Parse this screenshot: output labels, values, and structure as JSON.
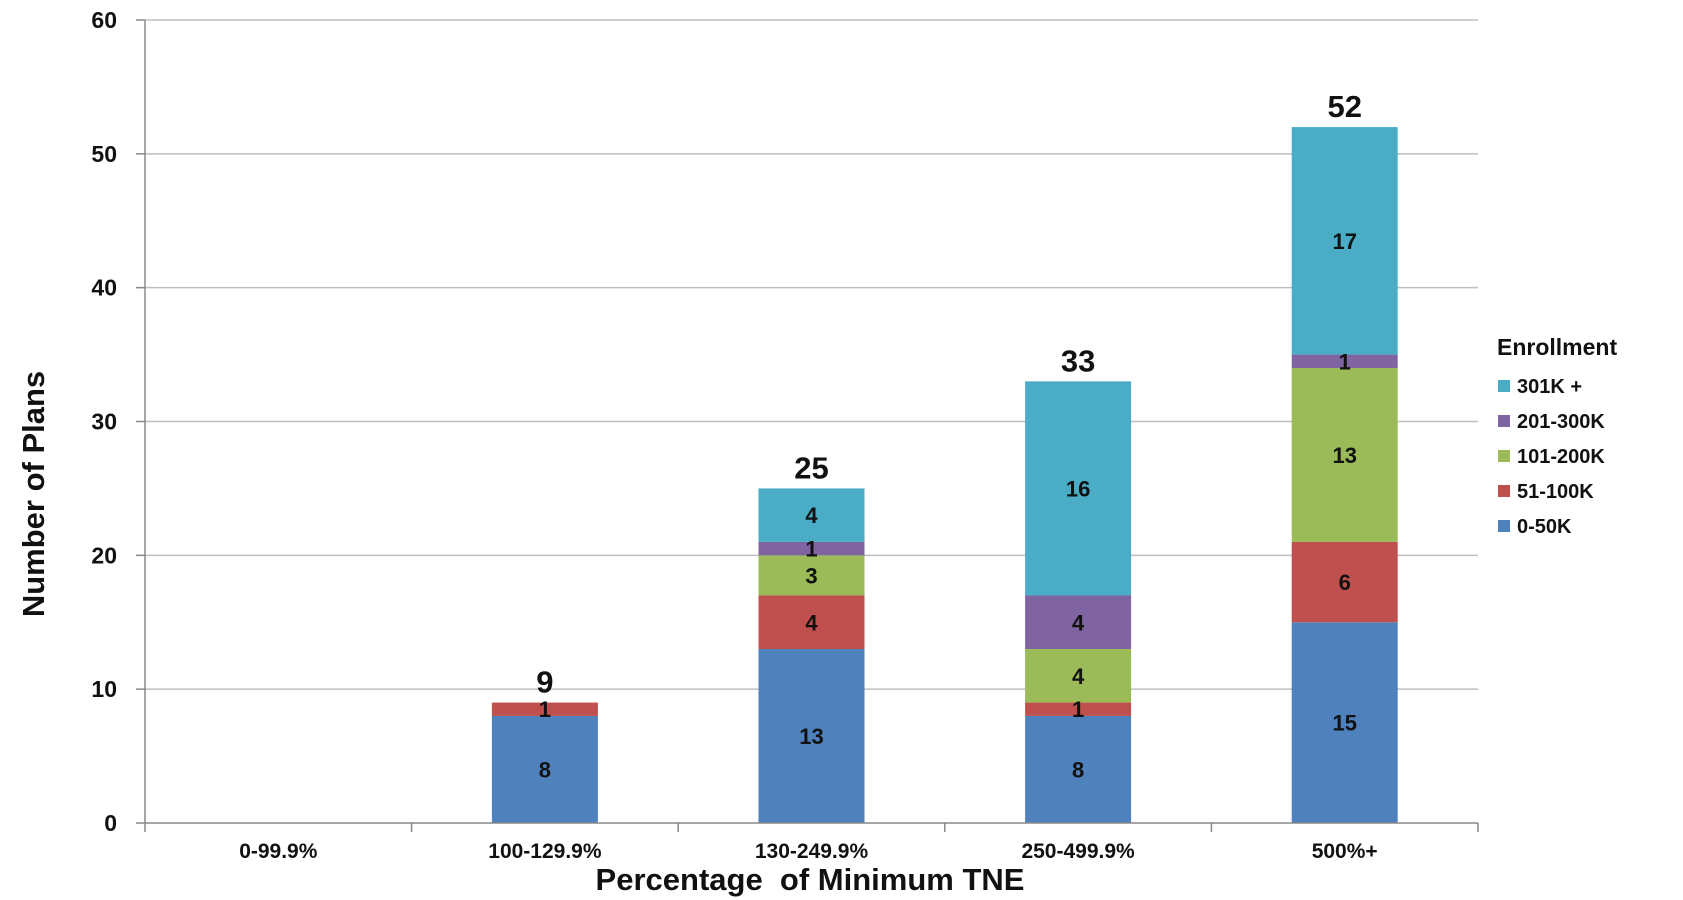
{
  "chart_data": {
    "type": "bar",
    "stacked": true,
    "title": "",
    "xlabel": "Percentage  of Minimum TNE",
    "ylabel": "Number of Plans",
    "ylim": [
      0,
      60
    ],
    "yticks": [
      0,
      10,
      20,
      30,
      40,
      50,
      60
    ],
    "grid": true,
    "legend_title": "Enrollment",
    "legend_position": "right",
    "categories": [
      "0-99.9%",
      "100-129.9%",
      "130-249.9%",
      "250-499.9%",
      "500%+"
    ],
    "series": [
      {
        "name": "0-50K",
        "color": "#4f81bd",
        "values": [
          0,
          8,
          13,
          8,
          15
        ]
      },
      {
        "name": "51-100K",
        "color": "#c0504d",
        "values": [
          0,
          1,
          4,
          1,
          6
        ]
      },
      {
        "name": "101-200K",
        "color": "#9bbb59",
        "values": [
          0,
          0,
          3,
          4,
          13
        ]
      },
      {
        "name": "201-300K",
        "color": "#8064a2",
        "values": [
          0,
          0,
          1,
          4,
          1
        ]
      },
      {
        "name": "301K +",
        "color": "#4bacc6",
        "values": [
          0,
          0,
          4,
          16,
          17
        ]
      }
    ],
    "totals": [
      null,
      9,
      25,
      33,
      52
    ],
    "legend_order": [
      "301K +",
      "201-300K",
      "101-200K",
      "51-100K",
      "0-50K"
    ]
  }
}
